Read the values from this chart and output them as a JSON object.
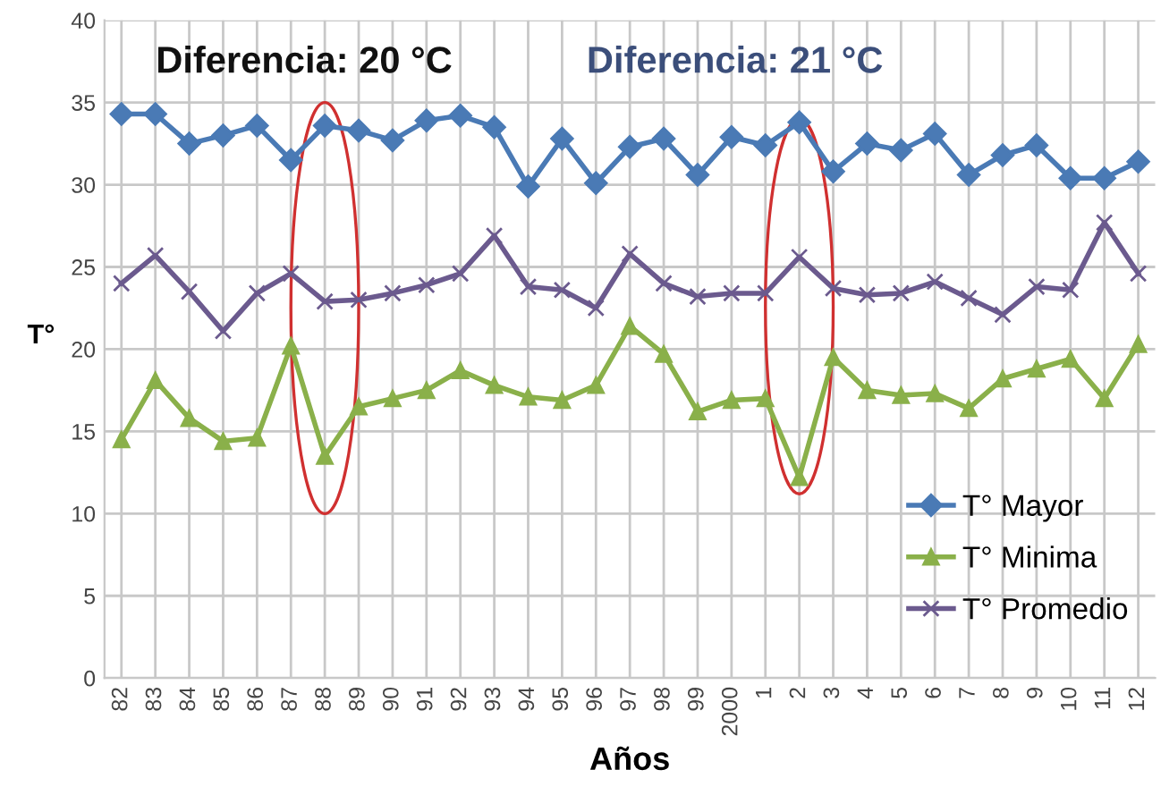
{
  "chart_data": {
    "type": "line",
    "xlabel": "Años",
    "ylabel": "T°",
    "categories": [
      "82",
      "83",
      "84",
      "85",
      "86",
      "87",
      "88",
      "89",
      "90",
      "91",
      "92",
      "93",
      "94",
      "95",
      "96",
      "97",
      "98",
      "99",
      "2000",
      "1",
      "2",
      "3",
      "4",
      "5",
      "6",
      "7",
      "8",
      "9",
      "10",
      "11",
      "12"
    ],
    "series": [
      {
        "name": "T° Mayor",
        "color": "#4a7ab5",
        "marker": "diamond",
        "values": [
          34.3,
          34.3,
          32.5,
          33,
          33.6,
          31.5,
          33.6,
          33.3,
          32.7,
          33.9,
          34.2,
          33.5,
          29.9,
          32.8,
          30.1,
          32.3,
          32.8,
          30.6,
          32.9,
          32.4,
          33.8,
          30.8,
          32.5,
          32.1,
          33.1,
          30.6,
          31.8,
          32.4,
          30.4,
          30.4,
          31.4
        ]
      },
      {
        "name": "T° Minima",
        "color": "#8ab04a",
        "marker": "triangle",
        "values": [
          14.5,
          18.1,
          15.8,
          14.4,
          14.6,
          20.2,
          13.5,
          16.5,
          17,
          17.5,
          18.7,
          17.8,
          17.1,
          16.9,
          17.8,
          21.4,
          19.7,
          16.2,
          16.9,
          17,
          12.2,
          19.5,
          17.5,
          17.2,
          17.3,
          16.4,
          18.2,
          18.8,
          19.4,
          17,
          20.3
        ]
      },
      {
        "name": "T° Promedio",
        "color": "#6b5a8e",
        "marker": "cross",
        "values": [
          24,
          25.7,
          23.5,
          21.1,
          23.4,
          24.6,
          22.9,
          23,
          23.4,
          23.9,
          24.6,
          26.9,
          23.8,
          23.6,
          22.5,
          25.8,
          24,
          23.2,
          23.4,
          23.4,
          25.6,
          23.7,
          23.3,
          23.4,
          24.1,
          23.1,
          22.1,
          23.8,
          23.6,
          27.7,
          24.6
        ]
      }
    ],
    "annotations": [
      "Diferencia: 20 °C",
      "Diferencia: 21 °C"
    ],
    "ylim": [
      0,
      40
    ],
    "yticks": [
      0,
      5,
      10,
      15,
      20,
      25,
      30,
      35,
      40
    ],
    "grid": true,
    "legend": "right",
    "line_style": "solid"
  }
}
